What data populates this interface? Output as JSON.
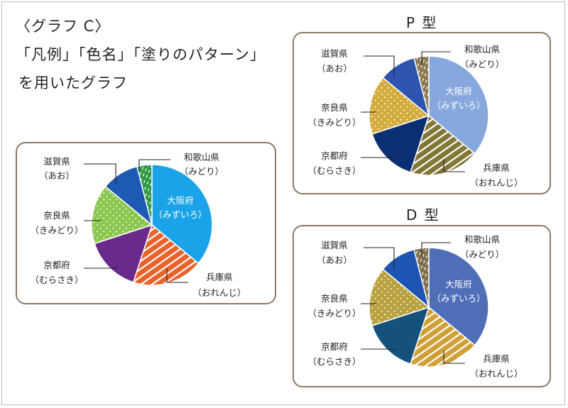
{
  "heading": {
    "line1": "〈グラフ C〉",
    "line2": "「凡例」「色名」「塗りのパターン」",
    "line3": "を用いたグラフ"
  },
  "chart_data": [
    {
      "type": "pie",
      "id": "C",
      "title": "",
      "slices": [
        {
          "category": "大阪府",
          "reading": "（みずいろ）",
          "value": 36,
          "color": "#1aa3e8",
          "pattern": "solid"
        },
        {
          "category": "兵庫県",
          "reading": "（おれんじ）",
          "value": 19,
          "color": "#e8622a",
          "pattern": "stripes"
        },
        {
          "category": "京都府",
          "reading": "（むらさき）",
          "value": 15,
          "color": "#6a2a8c",
          "pattern": "solid"
        },
        {
          "category": "奈良県",
          "reading": "（きみどり）",
          "value": 16,
          "color": "#8cc850",
          "pattern": "dots"
        },
        {
          "category": "滋賀県",
          "reading": "（あお）",
          "value": 10,
          "color": "#1e5ab4",
          "pattern": "solid"
        },
        {
          "category": "和歌山県",
          "reading": "（みどり）",
          "value": 4,
          "color": "#2e9a44",
          "pattern": "dashes"
        }
      ]
    },
    {
      "type": "pie",
      "id": "P",
      "title": "P 型",
      "slices": [
        {
          "category": "大阪府",
          "reading": "（みずいろ）",
          "value": 36,
          "color": "#86a8dc",
          "pattern": "solid"
        },
        {
          "category": "兵庫県",
          "reading": "（おれんじ）",
          "value": 19,
          "color": "#827638",
          "pattern": "stripes"
        },
        {
          "category": "京都府",
          "reading": "（むらさき）",
          "value": 15,
          "color": "#0c2f74",
          "pattern": "solid"
        },
        {
          "category": "奈良県",
          "reading": "（きみどり）",
          "value": 16,
          "color": "#d4ac3e",
          "pattern": "dots"
        },
        {
          "category": "滋賀県",
          "reading": "（あお）",
          "value": 10,
          "color": "#2f54b0",
          "pattern": "solid"
        },
        {
          "category": "和歌山県",
          "reading": "（みどり）",
          "value": 4,
          "color": "#8a7a50",
          "pattern": "dashes"
        }
      ]
    },
    {
      "type": "pie",
      "id": "D",
      "title": "D 型",
      "slices": [
        {
          "category": "大阪府",
          "reading": "（みずいろ）",
          "value": 36,
          "color": "#4f6eb8",
          "pattern": "solid"
        },
        {
          "category": "兵庫県",
          "reading": "（おれんじ）",
          "value": 19,
          "color": "#d0a038",
          "pattern": "stripes"
        },
        {
          "category": "京都府",
          "reading": "（むらさき）",
          "value": 15,
          "color": "#14527c",
          "pattern": "solid"
        },
        {
          "category": "奈良県",
          "reading": "（きみどり）",
          "value": 16,
          "color": "#b8a240",
          "pattern": "dots"
        },
        {
          "category": "滋賀県",
          "reading": "（あお）",
          "value": 10,
          "color": "#1e54b2",
          "pattern": "solid"
        },
        {
          "category": "和歌山県",
          "reading": "（みどり）",
          "value": 4,
          "color": "#7e6e4a",
          "pattern": "dashes"
        }
      ]
    }
  ]
}
